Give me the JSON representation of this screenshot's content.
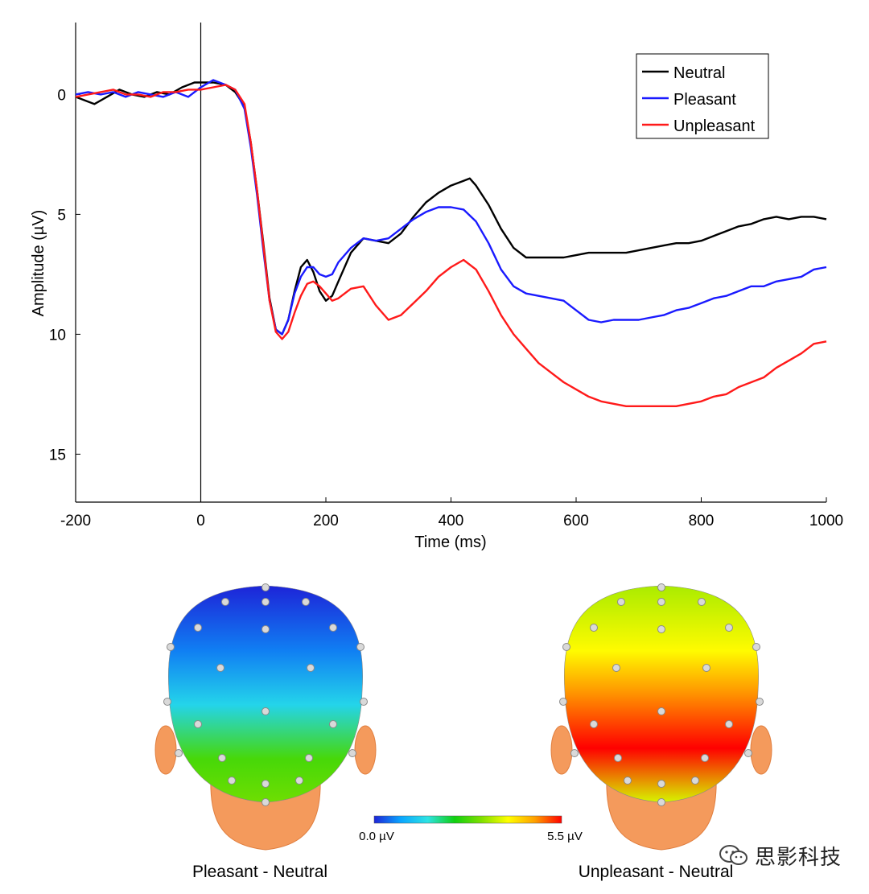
{
  "chart_data": {
    "type": "line",
    "xlabel": "Time (ms)",
    "ylabel": "Amplitude (µV)",
    "xlim": [
      -200,
      1000
    ],
    "ylim": [
      -3,
      17
    ],
    "y_inverted": true,
    "xticks": [
      -200,
      0,
      200,
      400,
      600,
      800,
      1000
    ],
    "yticks": [
      0,
      5,
      10,
      15
    ],
    "grid": false,
    "legend": "top-right",
    "stimulus_onset_line_at": 0,
    "series": [
      {
        "name": "Neutral",
        "color": "#000000",
        "x": [
          -200,
          -170,
          -150,
          -130,
          -110,
          -90,
          -70,
          -50,
          -30,
          -10,
          0,
          20,
          40,
          55,
          70,
          80,
          90,
          100,
          110,
          120,
          130,
          140,
          150,
          160,
          170,
          180,
          190,
          200,
          210,
          220,
          240,
          260,
          280,
          300,
          320,
          340,
          360,
          380,
          400,
          420,
          430,
          440,
          460,
          480,
          500,
          520,
          540,
          560,
          580,
          600,
          620,
          640,
          660,
          680,
          700,
          720,
          740,
          760,
          780,
          800,
          820,
          840,
          860,
          880,
          900,
          920,
          940,
          960,
          980,
          1000
        ],
        "y": [
          0.1,
          0.4,
          0.1,
          -0.2,
          0.0,
          0.1,
          -0.1,
          0.0,
          -0.3,
          -0.5,
          -0.5,
          -0.5,
          -0.4,
          -0.1,
          0.5,
          2.0,
          4.0,
          6.2,
          8.5,
          9.8,
          10.0,
          9.4,
          8.2,
          7.2,
          6.9,
          7.4,
          8.2,
          8.6,
          8.4,
          7.8,
          6.6,
          6.0,
          6.1,
          6.2,
          5.8,
          5.1,
          4.5,
          4.1,
          3.8,
          3.6,
          3.5,
          3.8,
          4.6,
          5.6,
          6.4,
          6.8,
          6.8,
          6.8,
          6.8,
          6.7,
          6.6,
          6.6,
          6.6,
          6.6,
          6.5,
          6.4,
          6.3,
          6.2,
          6.2,
          6.1,
          5.9,
          5.7,
          5.5,
          5.4,
          5.2,
          5.1,
          5.2,
          5.1,
          5.1,
          5.2
        ]
      },
      {
        "name": "Pleasant",
        "color": "#1a1aff",
        "x": [
          -200,
          -180,
          -160,
          -140,
          -120,
          -100,
          -80,
          -60,
          -40,
          -20,
          0,
          20,
          40,
          55,
          70,
          80,
          90,
          100,
          110,
          120,
          130,
          140,
          150,
          160,
          170,
          180,
          190,
          200,
          210,
          220,
          240,
          260,
          280,
          300,
          320,
          340,
          360,
          380,
          400,
          420,
          440,
          460,
          480,
          500,
          520,
          540,
          560,
          580,
          600,
          620,
          640,
          660,
          680,
          700,
          720,
          740,
          760,
          780,
          800,
          820,
          840,
          860,
          880,
          900,
          920,
          940,
          960,
          980,
          1000
        ],
        "y": [
          0.0,
          -0.1,
          0.0,
          -0.1,
          0.1,
          -0.1,
          0.0,
          0.1,
          -0.1,
          0.1,
          -0.3,
          -0.6,
          -0.4,
          -0.2,
          0.6,
          2.2,
          4.2,
          6.5,
          8.6,
          9.8,
          10.0,
          9.4,
          8.3,
          7.6,
          7.2,
          7.2,
          7.5,
          7.6,
          7.5,
          7.0,
          6.4,
          6.0,
          6.1,
          6.0,
          5.6,
          5.2,
          4.9,
          4.7,
          4.7,
          4.8,
          5.3,
          6.2,
          7.3,
          8.0,
          8.3,
          8.4,
          8.5,
          8.6,
          9.0,
          9.4,
          9.5,
          9.4,
          9.4,
          9.4,
          9.3,
          9.2,
          9.0,
          8.9,
          8.7,
          8.5,
          8.4,
          8.2,
          8.0,
          8.0,
          7.8,
          7.7,
          7.6,
          7.3,
          7.2
        ]
      },
      {
        "name": "Unpleasant",
        "color": "#ff1a1a",
        "x": [
          -200,
          -180,
          -160,
          -140,
          -120,
          -100,
          -80,
          -60,
          -40,
          -20,
          0,
          20,
          40,
          55,
          70,
          80,
          90,
          100,
          110,
          120,
          130,
          140,
          150,
          160,
          170,
          180,
          190,
          200,
          210,
          220,
          240,
          260,
          280,
          300,
          320,
          340,
          360,
          380,
          400,
          420,
          440,
          460,
          480,
          500,
          520,
          540,
          560,
          580,
          600,
          620,
          640,
          660,
          680,
          700,
          720,
          740,
          760,
          780,
          800,
          820,
          840,
          860,
          880,
          900,
          920,
          940,
          960,
          980,
          1000
        ],
        "y": [
          0.1,
          0.0,
          -0.1,
          -0.2,
          0.0,
          0.0,
          0.1,
          -0.1,
          -0.1,
          -0.2,
          -0.2,
          -0.3,
          -0.4,
          -0.2,
          0.4,
          2.0,
          4.0,
          6.3,
          8.6,
          9.9,
          10.2,
          9.9,
          9.1,
          8.4,
          7.9,
          7.8,
          8.0,
          8.3,
          8.6,
          8.5,
          8.1,
          8.0,
          8.8,
          9.4,
          9.2,
          8.7,
          8.2,
          7.6,
          7.2,
          6.9,
          7.3,
          8.2,
          9.2,
          10.0,
          10.6,
          11.2,
          11.6,
          12.0,
          12.3,
          12.6,
          12.8,
          12.9,
          13.0,
          13.0,
          13.0,
          13.0,
          13.0,
          12.9,
          12.8,
          12.6,
          12.5,
          12.2,
          12.0,
          11.8,
          11.4,
          11.1,
          10.8,
          10.4,
          10.3
        ]
      }
    ]
  },
  "topomaps": {
    "colorbar": {
      "min_label": "0.0 µV",
      "max_label": "5.5 µV",
      "colors": [
        "#1d24d8",
        "#0aa6ff",
        "#2de3e3",
        "#10d010",
        "#7ee000",
        "#ffff00",
        "#ffa000",
        "#ff0000"
      ]
    },
    "maps": [
      {
        "caption": "Pleasant - Neutral",
        "mean_level": 0.35
      },
      {
        "caption": "Unpleasant - Neutral",
        "mean_level": 0.82
      }
    ]
  },
  "watermark": {
    "text": "思影科技",
    "icon": "wechat-logo-icon"
  }
}
